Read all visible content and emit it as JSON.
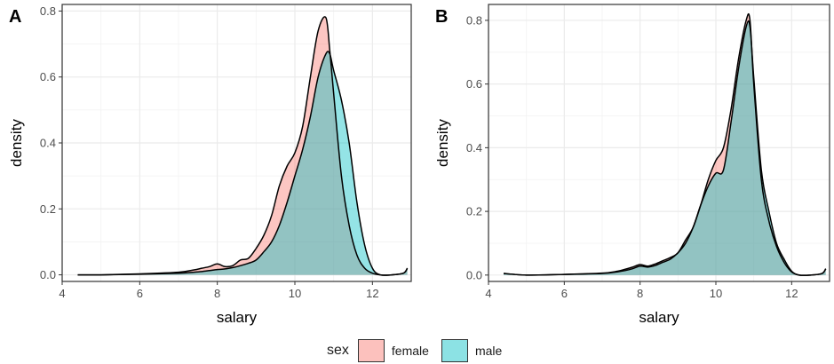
{
  "legend": {
    "title": "sex",
    "entries": [
      {
        "label": "female",
        "color": "#F8766D"
      },
      {
        "label": "male",
        "color": "#00BFC4"
      }
    ]
  },
  "chart_data": [
    {
      "type": "area",
      "panel_label": "A",
      "xlabel": "salary",
      "ylabel": "density",
      "xlim": [
        4.0,
        13.0
      ],
      "ylim": [
        -0.02,
        0.82
      ],
      "x_ticks": [
        4,
        6,
        8,
        10,
        12
      ],
      "y_ticks": [
        0.0,
        0.2,
        0.4,
        0.6,
        0.8
      ],
      "y_tick_labels": [
        "0.0",
        "0.2",
        "0.4",
        "0.6",
        "0.8"
      ],
      "grid": true,
      "series": [
        {
          "name": "female",
          "color": "#F8766D",
          "x": [
            4.4,
            5.0,
            6.0,
            7.0,
            7.4,
            7.6,
            7.8,
            8.0,
            8.2,
            8.4,
            8.6,
            8.8,
            9.0,
            9.2,
            9.4,
            9.6,
            9.8,
            10.0,
            10.2,
            10.4,
            10.6,
            10.8,
            10.9,
            11.0,
            11.2,
            11.4,
            11.6,
            11.8,
            12.0,
            12.2,
            12.5,
            12.8,
            12.9
          ],
          "y": [
            0.0,
            0.0,
            0.003,
            0.008,
            0.015,
            0.02,
            0.025,
            0.033,
            0.025,
            0.028,
            0.045,
            0.05,
            0.08,
            0.12,
            0.18,
            0.27,
            0.33,
            0.37,
            0.45,
            0.6,
            0.74,
            0.78,
            0.68,
            0.55,
            0.3,
            0.15,
            0.06,
            0.02,
            0.005,
            0.0,
            0.0,
            0.005,
            0.02
          ]
        },
        {
          "name": "male",
          "color": "#00BFC4",
          "x": [
            4.4,
            5.0,
            6.0,
            7.0,
            7.4,
            7.6,
            7.8,
            8.0,
            8.2,
            8.4,
            8.6,
            8.8,
            9.0,
            9.2,
            9.4,
            9.6,
            9.8,
            10.0,
            10.2,
            10.4,
            10.6,
            10.8,
            10.9,
            11.0,
            11.2,
            11.4,
            11.6,
            11.8,
            12.0,
            12.2,
            12.5,
            12.8,
            12.9
          ],
          "y": [
            0.0,
            0.0,
            0.002,
            0.005,
            0.008,
            0.01,
            0.013,
            0.016,
            0.018,
            0.022,
            0.028,
            0.035,
            0.045,
            0.07,
            0.1,
            0.15,
            0.22,
            0.3,
            0.38,
            0.48,
            0.6,
            0.67,
            0.67,
            0.62,
            0.53,
            0.4,
            0.22,
            0.09,
            0.02,
            0.0,
            0.0,
            0.005,
            0.02
          ]
        }
      ]
    },
    {
      "type": "area",
      "panel_label": "B",
      "xlabel": "salary",
      "ylabel": "density",
      "xlim": [
        4.0,
        13.0
      ],
      "ylim": [
        -0.02,
        0.85
      ],
      "x_ticks": [
        4,
        6,
        8,
        10,
        12
      ],
      "y_ticks": [
        0.0,
        0.2,
        0.4,
        0.6,
        0.8
      ],
      "y_tick_labels": [
        "0.0",
        "0.2",
        "0.4",
        "0.6",
        "0.8"
      ],
      "grid": true,
      "series": [
        {
          "name": "female",
          "color": "#F8766D",
          "x": [
            4.4,
            5.0,
            6.0,
            7.0,
            7.4,
            7.6,
            7.8,
            8.0,
            8.2,
            8.4,
            8.6,
            8.8,
            9.0,
            9.2,
            9.4,
            9.6,
            9.8,
            10.0,
            10.2,
            10.4,
            10.6,
            10.8,
            10.9,
            11.0,
            11.2,
            11.4,
            11.6,
            11.8,
            12.0,
            12.2,
            12.5,
            12.8,
            12.9
          ],
          "y": [
            0.005,
            0.0,
            0.002,
            0.006,
            0.012,
            0.018,
            0.025,
            0.033,
            0.028,
            0.035,
            0.045,
            0.055,
            0.07,
            0.11,
            0.15,
            0.22,
            0.3,
            0.36,
            0.4,
            0.52,
            0.68,
            0.8,
            0.8,
            0.6,
            0.3,
            0.17,
            0.09,
            0.04,
            0.01,
            0.0,
            0.0,
            0.005,
            0.02
          ]
        },
        {
          "name": "male",
          "color": "#00BFC4",
          "x": [
            4.4,
            5.0,
            6.0,
            7.0,
            7.4,
            7.6,
            7.8,
            8.0,
            8.2,
            8.4,
            8.6,
            8.8,
            9.0,
            9.2,
            9.4,
            9.6,
            9.8,
            10.0,
            10.2,
            10.4,
            10.6,
            10.8,
            10.9,
            11.0,
            11.2,
            11.4,
            11.6,
            11.8,
            12.0,
            12.2,
            12.5,
            12.8,
            12.9
          ],
          "y": [
            0.005,
            0.0,
            0.002,
            0.005,
            0.01,
            0.014,
            0.02,
            0.028,
            0.025,
            0.03,
            0.04,
            0.05,
            0.07,
            0.1,
            0.15,
            0.22,
            0.28,
            0.32,
            0.33,
            0.48,
            0.65,
            0.78,
            0.78,
            0.62,
            0.33,
            0.2,
            0.1,
            0.05,
            0.012,
            0.0,
            0.0,
            0.005,
            0.02
          ]
        }
      ]
    }
  ]
}
